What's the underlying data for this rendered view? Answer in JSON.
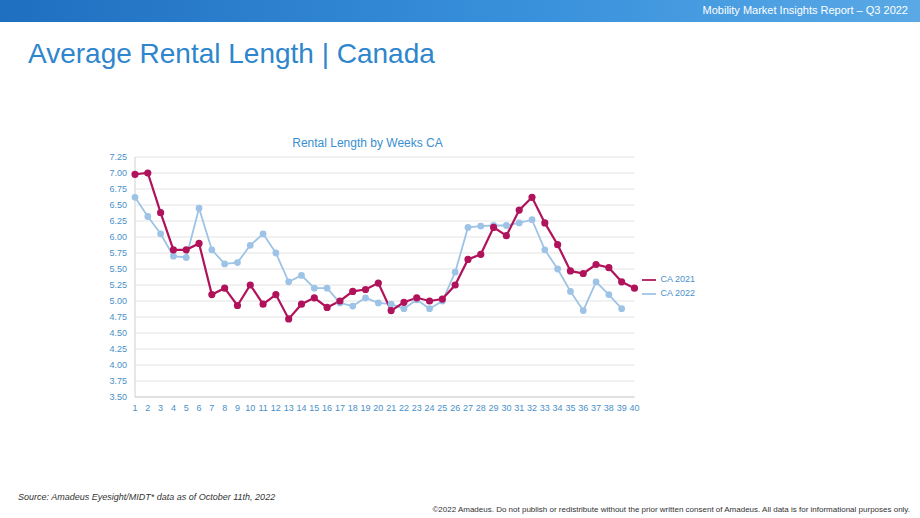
{
  "slide": {
    "header": "Mobility Market Insights Report – Q3 2022",
    "title": "Average Rental Length | Canada",
    "source": "Source: Amadeus Eyesight/MIDT* data as of October 11th, 2022",
    "copyright": "©2022 Amadeus. Do not publish or redistribute without the prior written consent of Amadeus. All data is for informational purposes only."
  },
  "chart_data": {
    "type": "line",
    "title": "Rental Length by Weeks CA",
    "categories": [
      1,
      2,
      3,
      4,
      5,
      6,
      7,
      8,
      9,
      10,
      11,
      12,
      13,
      14,
      15,
      16,
      17,
      18,
      19,
      20,
      21,
      22,
      23,
      24,
      25,
      26,
      27,
      28,
      29,
      30,
      31,
      32,
      33,
      34,
      35,
      36,
      37,
      38,
      39,
      40
    ],
    "series": [
      {
        "name": "CA 2022",
        "color": "#9dc3e6",
        "marker": "circle",
        "line_style": "solid",
        "values": [
          6.62,
          6.32,
          6.05,
          5.7,
          5.68,
          6.45,
          5.8,
          5.58,
          5.6,
          5.87,
          6.05,
          5.75,
          5.3,
          5.4,
          5.2,
          5.2,
          4.97,
          4.92,
          5.05,
          4.97,
          4.95,
          4.88,
          5.02,
          4.88,
          5.0,
          5.45,
          6.15,
          6.17,
          6.18,
          6.18,
          6.22,
          6.27,
          5.8,
          5.5,
          5.15,
          4.85,
          5.3,
          5.1,
          4.88,
          null
        ]
      },
      {
        "name": "CA 2021",
        "color": "#b0135b",
        "marker": "circle",
        "line_style": "solid",
        "values": [
          6.98,
          7.0,
          6.38,
          5.8,
          5.8,
          5.9,
          5.1,
          5.2,
          4.93,
          5.25,
          4.95,
          5.1,
          4.72,
          4.95,
          5.05,
          4.9,
          5.0,
          5.15,
          5.18,
          5.28,
          4.85,
          4.98,
          5.05,
          5.0,
          5.03,
          5.25,
          5.65,
          5.73,
          6.15,
          6.02,
          6.42,
          6.62,
          6.22,
          5.88,
          5.47,
          5.43,
          5.57,
          5.52,
          5.3,
          5.2
        ]
      }
    ],
    "ylim": [
      3.5,
      7.25
    ],
    "yticks": [
      {
        "value": 3.5,
        "label": "3.50"
      },
      {
        "value": 3.75,
        "label": "3.75"
      },
      {
        "value": 4.0,
        "label": "4.00"
      },
      {
        "value": 4.25,
        "label": "4.25"
      },
      {
        "value": 4.5,
        "label": "4.50"
      },
      {
        "value": 4.75,
        "label": "4.75"
      },
      {
        "value": 5.0,
        "label": "5.00"
      },
      {
        "value": 5.25,
        "label": "5.25"
      },
      {
        "value": 5.5,
        "label": "5.50"
      },
      {
        "value": 5.75,
        "label": "5.75"
      },
      {
        "value": 6.0,
        "label": "6.00"
      },
      {
        "value": 6.25,
        "label": "6.25"
      },
      {
        "value": 6.5,
        "label": "6.50"
      },
      {
        "value": 6.75,
        "label": "6.75"
      },
      {
        "value": 7.0,
        "label": "7.00"
      },
      {
        "value": 7.25,
        "label": "7.25"
      }
    ],
    "grid": true,
    "legend": "right"
  }
}
